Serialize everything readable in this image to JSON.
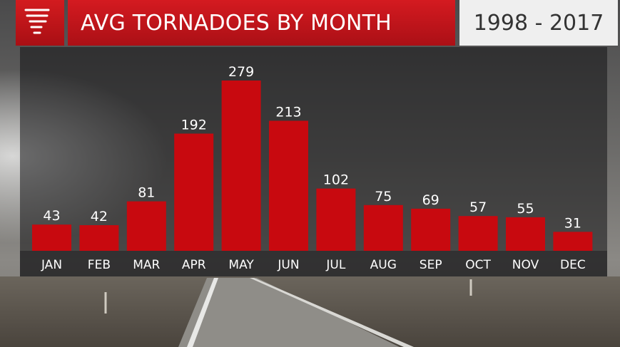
{
  "header": {
    "title": "AVG TORNADOES BY MONTH",
    "date_range": "1998 - 2017",
    "icon": "tornado-icon",
    "accent_color": "#c8090f"
  },
  "chart_data": {
    "type": "bar",
    "title": "AVG TORNADOES BY MONTH",
    "subtitle": "1998 - 2017",
    "categories": [
      "JAN",
      "FEB",
      "MAR",
      "APR",
      "MAY",
      "JUN",
      "JUL",
      "AUG",
      "SEP",
      "OCT",
      "NOV",
      "DEC"
    ],
    "values": [
      43,
      42,
      81,
      192,
      279,
      213,
      102,
      75,
      69,
      57,
      55,
      31
    ],
    "xlabel": "",
    "ylabel": "",
    "ylim": [
      0,
      279
    ],
    "grid": false,
    "legend": "none",
    "data_labels": true,
    "bar_color": "#c8090f"
  }
}
